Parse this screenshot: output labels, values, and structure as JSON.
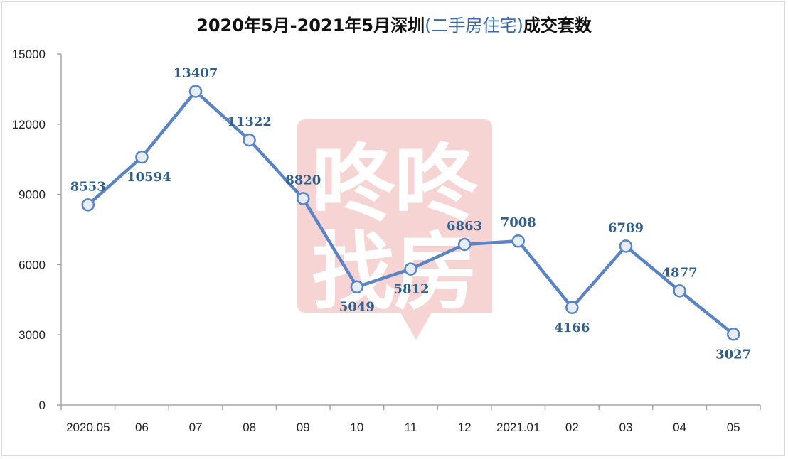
{
  "chart_data": {
    "type": "line",
    "title_main": "2020年5月-2021年5月深圳",
    "title_paren": "(二手房住宅)",
    "title_tail": "成交套数",
    "categories": [
      "2020.05",
      "06",
      "07",
      "08",
      "09",
      "10",
      "11",
      "12",
      "2021.01",
      "02",
      "03",
      "04",
      "05"
    ],
    "series": [
      {
        "values": [
          8553,
          10594,
          13407,
          11322,
          8820,
          5049,
          5812,
          6863,
          7008,
          4166,
          6789,
          4877,
          3027
        ]
      }
    ],
    "ylim": [
      0,
      15000
    ],
    "yticks": [
      0,
      3000,
      6000,
      9000,
      12000,
      15000
    ],
    "grid": false,
    "legend": "none",
    "line_color": "#5b84c4",
    "marker_fill": "#e6edf5",
    "label_color": "#2f5f8a",
    "watermark": {
      "chars": [
        "咚",
        "咚",
        "找",
        "房"
      ],
      "color": "#f4cccc"
    }
  }
}
